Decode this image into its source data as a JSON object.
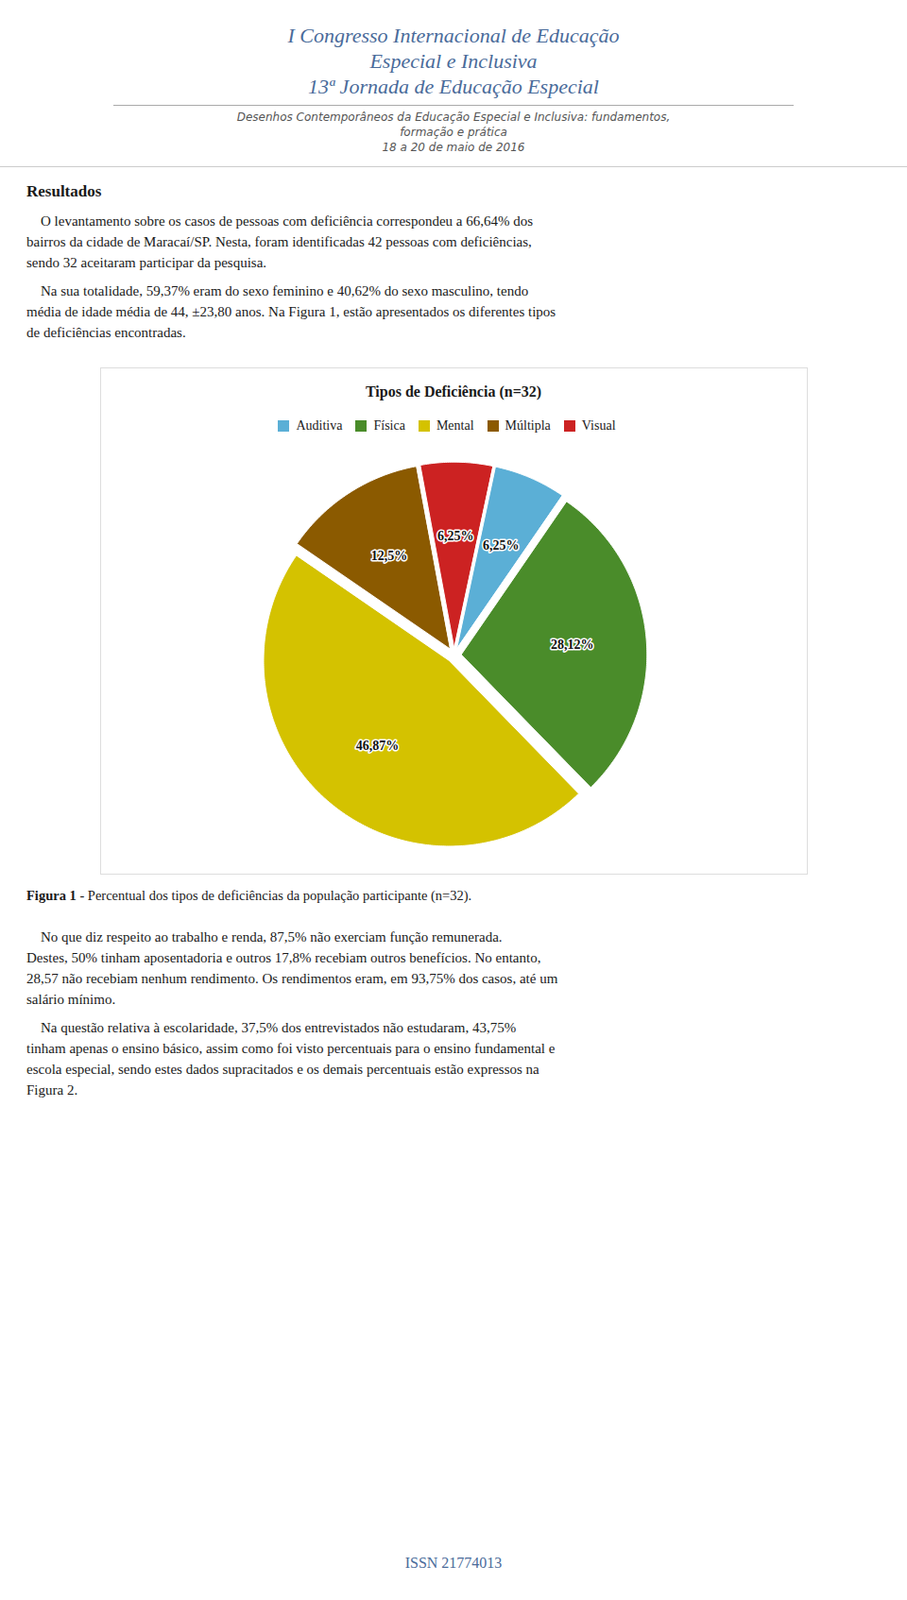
{
  "chart_data": {
    "type": "pie",
    "title": "Tipos de Deficiência (n=32)",
    "categories": [
      "Auditiva",
      "Física",
      "Mental",
      "Múltipla",
      "Visual"
    ],
    "values": [
      6.25,
      28.12,
      46.87,
      12.5,
      6.25
    ],
    "value_labels": [
      "6,25%",
      "28,12%",
      "46,87%",
      "12,5%",
      "6,25%"
    ],
    "colors": [
      "#5bafd6",
      "#4a8c2a",
      "#d4c200",
      "#8B5A00",
      "#cc2222"
    ],
    "data_labels": true,
    "legend": "top",
    "annotations": [
      "I Congresso Internacional de Educação",
      "Especial e Inclusiva",
      "13ª Jornada de Educação Especial",
      "Desenhos Contemporâneos da Educação Especial e Inclusiva: fundamentos,",
      "formação e prática",
      "18 a 20 de maio de 2016",
      "Resultados",
      "    O levantamento sobre os casos de pessoas com deficiência correspondeu a 66,64% dos",
      "bairros da cidade de Maracaí/SP. Nesta, foram identificadas 42 pessoas com deficiências,",
      "sendo 32 aceitaram participar da pesquisa.",
      "    Na sua totalidade, 59,37% eram do sexo feminino e 40,62% do sexo masculino, tendo",
      "média de idade média de 44, ±23,80 anos. Na Figura 1, estão apresentados os diferentes tipos",
      "de deficiências encontradas.",
      "Figura 1",
      " - Percentual dos tipos de deficiências da população participante (n=32).",
      "    No que diz respeito ao trabalho e renda, 87,5% não exerciam função remunerada.",
      "Destes, 50% tinham aposentadoria e outros 17,8% recebiam outros benefícios. No entanto,",
      "28,57 não recebiam nenhum rendimento. Os rendimentos eram, em 93,75% dos casos, até um",
      "salário mínimo.",
      "    Na questão relativa à escolaridade, 37,5% dos entrevistados não estudaram, 43,75%",
      "tinham apenas o ensino básico, assim como foi visto percentuais para o ensino fundamental e",
      "escola especial, sendo estes dados supracitados e os demais percentuais estão expressos na",
      "Figura 2.",
      "ISSN 21774013"
    ]
  }
}
